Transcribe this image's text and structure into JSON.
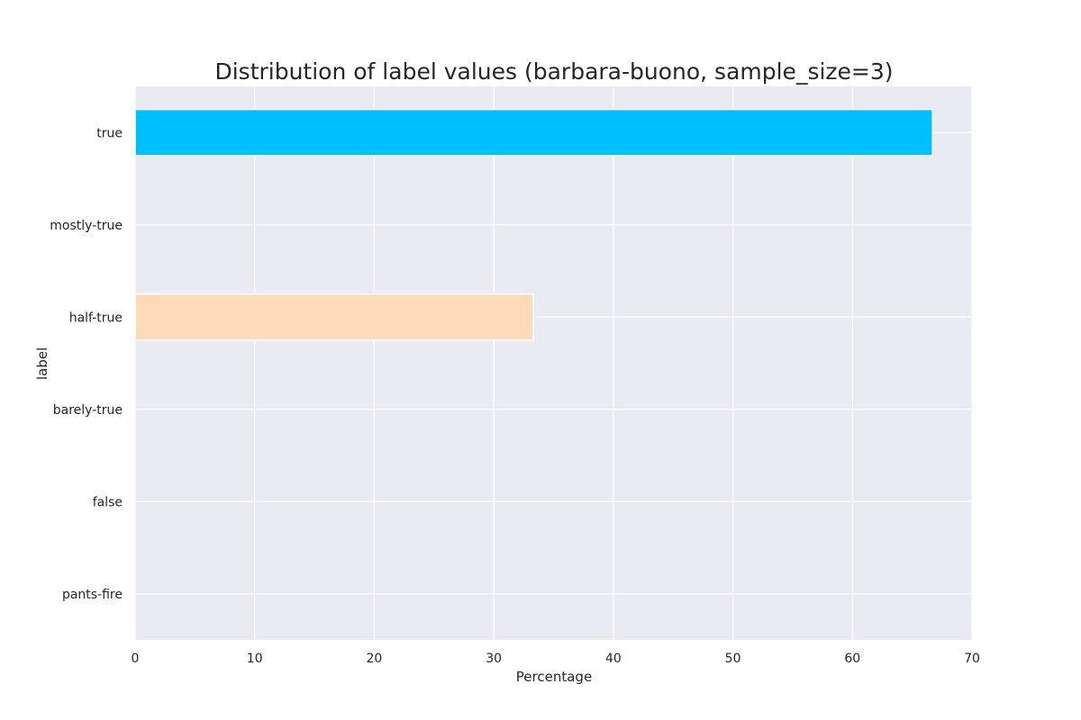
{
  "chart_data": {
    "type": "bar",
    "orientation": "horizontal",
    "title": "Distribution of label values (barbara-buono, sample_size=3)",
    "xlabel": "Percentage",
    "ylabel": "label",
    "categories": [
      "true",
      "mostly-true",
      "half-true",
      "barely-true",
      "false",
      "pants-fire"
    ],
    "values": [
      66.7,
      0,
      33.3,
      0,
      0,
      0
    ],
    "bar_colors": [
      "#00bfff",
      "#f0e68c",
      "#ffdab9",
      "#ff8c00",
      "#ff6347",
      "#8b0000"
    ],
    "xlim": [
      0,
      70
    ],
    "xticks": [
      0,
      10,
      20,
      30,
      40,
      50,
      60,
      70
    ],
    "grid": true,
    "background": "#eaeaf2",
    "grid_color": "#ffffff"
  }
}
